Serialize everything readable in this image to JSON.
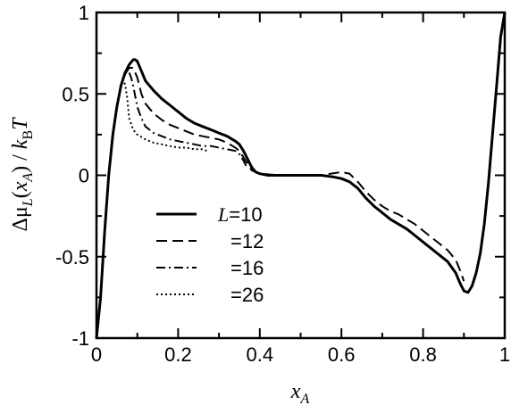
{
  "chart_data": {
    "type": "line",
    "xlabel": "x_A",
    "ylabel": "Δμ_L(x_A) / k_B T",
    "xlim": [
      0,
      1
    ],
    "ylim": [
      -1,
      1
    ],
    "x_ticks": [
      "0",
      "0.2",
      "0.4",
      "0.6",
      "0.8",
      "1"
    ],
    "y_ticks": [
      "-1",
      "-0.5",
      "0",
      "0.5",
      "1"
    ],
    "grid": false,
    "legend_position": "lower-left",
    "legend": {
      "var": "L",
      "entries": [
        "=10",
        "=12",
        "=16",
        "=26"
      ]
    },
    "series": [
      {
        "name": "L=10",
        "style": "solid",
        "x": [
          0.0,
          0.01,
          0.02,
          0.03,
          0.04,
          0.05,
          0.06,
          0.07,
          0.08,
          0.09,
          0.095,
          0.1,
          0.11,
          0.12,
          0.14,
          0.16,
          0.18,
          0.2,
          0.22,
          0.24,
          0.26,
          0.28,
          0.3,
          0.32,
          0.34,
          0.35,
          0.36,
          0.37,
          0.38,
          0.39,
          0.4,
          0.42,
          0.44,
          0.46,
          0.5,
          0.55,
          0.58,
          0.6,
          0.62,
          0.64,
          0.66,
          0.68,
          0.7,
          0.72,
          0.74,
          0.76,
          0.78,
          0.8,
          0.82,
          0.84,
          0.86,
          0.88,
          0.89,
          0.9,
          0.91,
          0.92,
          0.93,
          0.94,
          0.95,
          0.96,
          0.97,
          0.98,
          0.99,
          1.0
        ],
        "y": [
          -1.0,
          -0.75,
          -0.35,
          0.0,
          0.25,
          0.42,
          0.55,
          0.63,
          0.68,
          0.71,
          0.71,
          0.7,
          0.64,
          0.58,
          0.52,
          0.47,
          0.43,
          0.39,
          0.35,
          0.32,
          0.3,
          0.28,
          0.26,
          0.24,
          0.21,
          0.19,
          0.15,
          0.1,
          0.05,
          0.02,
          0.01,
          0.0,
          0.0,
          0.0,
          0.0,
          0.0,
          -0.01,
          -0.02,
          -0.04,
          -0.08,
          -0.14,
          -0.19,
          -0.23,
          -0.27,
          -0.3,
          -0.33,
          -0.37,
          -0.41,
          -0.45,
          -0.49,
          -0.53,
          -0.6,
          -0.66,
          -0.71,
          -0.72,
          -0.68,
          -0.6,
          -0.48,
          -0.3,
          -0.05,
          0.25,
          0.55,
          0.85,
          1.0
        ]
      },
      {
        "name": "=12",
        "style": "dashed",
        "x": [
          0.02,
          0.03,
          0.04,
          0.05,
          0.06,
          0.07,
          0.08,
          0.09,
          0.1,
          0.11,
          0.12,
          0.14,
          0.16,
          0.18,
          0.2,
          0.22,
          0.24,
          0.26,
          0.28,
          0.3,
          0.32,
          0.34,
          0.35,
          0.36,
          0.37,
          0.38,
          0.4,
          0.45,
          0.5,
          0.55,
          0.6,
          0.62,
          0.64,
          0.66,
          0.68,
          0.7,
          0.72,
          0.74,
          0.76,
          0.78,
          0.8,
          0.82,
          0.84,
          0.86,
          0.88,
          0.89,
          0.9
        ],
        "y": [
          -0.35,
          0.0,
          0.25,
          0.42,
          0.55,
          0.62,
          0.66,
          0.66,
          0.6,
          0.5,
          0.44,
          0.38,
          0.34,
          0.31,
          0.29,
          0.27,
          0.25,
          0.24,
          0.23,
          0.22,
          0.2,
          0.17,
          0.15,
          0.11,
          0.07,
          0.03,
          0.01,
          0.0,
          0.0,
          0.0,
          0.02,
          0.01,
          -0.04,
          -0.1,
          -0.15,
          -0.19,
          -0.22,
          -0.24,
          -0.27,
          -0.3,
          -0.34,
          -0.38,
          -0.42,
          -0.46,
          -0.52,
          -0.58,
          -0.65
        ]
      },
      {
        "name": "=16",
        "style": "dash-dot",
        "x": [
          0.03,
          0.04,
          0.05,
          0.06,
          0.07,
          0.08,
          0.085,
          0.09,
          0.1,
          0.11,
          0.12,
          0.14,
          0.16,
          0.18,
          0.2,
          0.22,
          0.24,
          0.26,
          0.28,
          0.3,
          0.32,
          0.34,
          0.35,
          0.36,
          0.37
        ],
        "y": [
          0.0,
          0.25,
          0.42,
          0.55,
          0.62,
          0.63,
          0.6,
          0.55,
          0.42,
          0.35,
          0.3,
          0.26,
          0.24,
          0.22,
          0.21,
          0.2,
          0.19,
          0.18,
          0.18,
          0.17,
          0.16,
          0.15,
          0.13,
          0.09,
          0.04
        ]
      },
      {
        "name": "=26",
        "style": "dotted",
        "x": [
          0.03,
          0.04,
          0.05,
          0.06,
          0.065,
          0.07,
          0.075,
          0.08,
          0.09,
          0.1,
          0.12,
          0.14,
          0.16,
          0.18,
          0.2,
          0.22,
          0.24,
          0.26,
          0.27
        ],
        "y": [
          0.0,
          0.25,
          0.42,
          0.55,
          0.58,
          0.56,
          0.48,
          0.35,
          0.28,
          0.25,
          0.22,
          0.2,
          0.19,
          0.18,
          0.17,
          0.17,
          0.16,
          0.16,
          0.15
        ]
      }
    ]
  }
}
